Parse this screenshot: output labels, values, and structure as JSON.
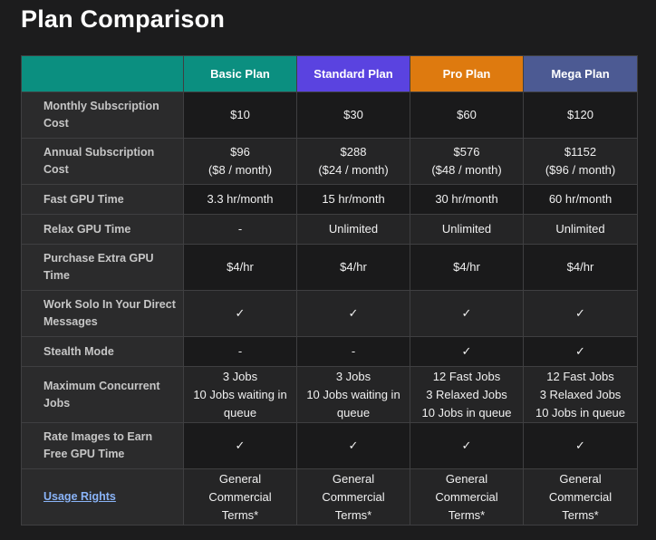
{
  "page_title": "Plan Comparison",
  "plans": [
    {
      "name": "Basic Plan",
      "color": "#0b8f80"
    },
    {
      "name": "Standard Plan",
      "color": "#5a43e0"
    },
    {
      "name": "Pro Plan",
      "color": "#de7a0f"
    },
    {
      "name": "Mega Plan",
      "color": "#4c5a93"
    }
  ],
  "header_corner_color": "#0b8f80",
  "rows": [
    {
      "feature": "Monthly Subscription Cost",
      "values": [
        [
          "$10"
        ],
        [
          "$30"
        ],
        [
          "$60"
        ],
        [
          "$120"
        ]
      ]
    },
    {
      "feature": "Annual Subscription Cost",
      "values": [
        [
          "$96",
          "($8 / month)"
        ],
        [
          "$288",
          "($24 / month)"
        ],
        [
          "$576",
          "($48 / month)"
        ],
        [
          "$1152",
          "($96 / month)"
        ]
      ]
    },
    {
      "feature": "Fast GPU Time",
      "values": [
        [
          "3.3 hr/month"
        ],
        [
          "15 hr/month"
        ],
        [
          "30 hr/month"
        ],
        [
          "60 hr/month"
        ]
      ]
    },
    {
      "feature": "Relax GPU Time",
      "values": [
        [
          "-"
        ],
        [
          "Unlimited"
        ],
        [
          "Unlimited"
        ],
        [
          "Unlimited"
        ]
      ]
    },
    {
      "feature": "Purchase Extra GPU Time",
      "values": [
        [
          "$4/hr"
        ],
        [
          "$4/hr"
        ],
        [
          "$4/hr"
        ],
        [
          "$4/hr"
        ]
      ]
    },
    {
      "feature": "Work Solo In Your Direct Messages",
      "values": [
        [
          "✓"
        ],
        [
          "✓"
        ],
        [
          "✓"
        ],
        [
          "✓"
        ]
      ]
    },
    {
      "feature": "Stealth Mode",
      "values": [
        [
          "-"
        ],
        [
          "-"
        ],
        [
          "✓"
        ],
        [
          "✓"
        ]
      ]
    },
    {
      "feature": "Maximum Concurrent Jobs",
      "values": [
        [
          "3 Jobs",
          "10 Jobs waiting in",
          "queue"
        ],
        [
          "3 Jobs",
          "10 Jobs waiting in",
          "queue"
        ],
        [
          "12 Fast Jobs",
          "3 Relaxed Jobs",
          "10 Jobs in queue"
        ],
        [
          "12 Fast Jobs",
          "3 Relaxed Jobs",
          "10 Jobs in queue"
        ]
      ]
    },
    {
      "feature": "Rate Images to Earn Free GPU Time",
      "values": [
        [
          "✓"
        ],
        [
          "✓"
        ],
        [
          "✓"
        ],
        [
          "✓"
        ]
      ]
    },
    {
      "feature": "Usage Rights",
      "feature_is_link": true,
      "values": [
        [
          "General",
          "Commercial",
          "Terms*"
        ],
        [
          "General",
          "Commercial",
          "Terms*"
        ],
        [
          "General",
          "Commercial",
          "Terms*"
        ],
        [
          "General",
          "Commercial",
          "Terms*"
        ]
      ]
    }
  ]
}
